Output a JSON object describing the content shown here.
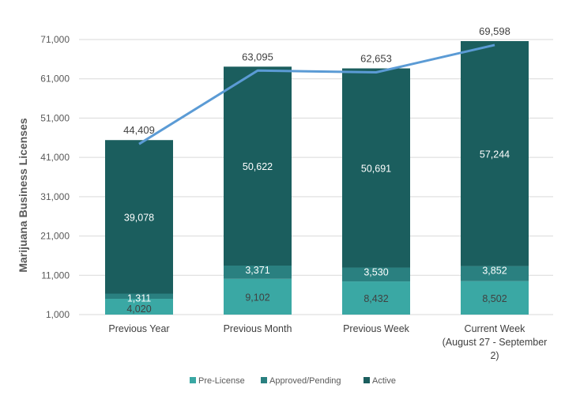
{
  "chart_data": {
    "type": "bar",
    "stacked": true,
    "categories": [
      "Previous Year",
      "Previous Month",
      "Previous Week",
      "Current Week (August 27 - September 2)"
    ],
    "category_lines": [
      [
        "Previous Year"
      ],
      [
        "Previous Month"
      ],
      [
        "Previous Week"
      ],
      [
        "Current Week",
        "(August 27 - September",
        "2)"
      ]
    ],
    "series": [
      {
        "name": "Pre-License",
        "values": [
          4020,
          9102,
          8432,
          8502
        ],
        "color": "#3AA8A4",
        "label_color": "dark"
      },
      {
        "name": "Approved/Pending",
        "values": [
          1311,
          3371,
          3530,
          3852
        ],
        "color": "#2A8080",
        "label_color": "light"
      },
      {
        "name": "Active",
        "values": [
          39078,
          50622,
          50691,
          57244
        ],
        "color": "#1B5E5E",
        "label_color": "light"
      }
    ],
    "line_series": {
      "values": [
        44409,
        63095,
        62653,
        69598
      ],
      "color": "#5B9BD5"
    },
    "ylabel": "Marijuana Business Licenses",
    "xlabel": "",
    "title": "",
    "ylim": [
      1000,
      71000
    ],
    "yticks": [
      1000,
      11000,
      21000,
      31000,
      41000,
      51000,
      61000,
      71000
    ],
    "grid": true,
    "legend_position": "bottom"
  }
}
